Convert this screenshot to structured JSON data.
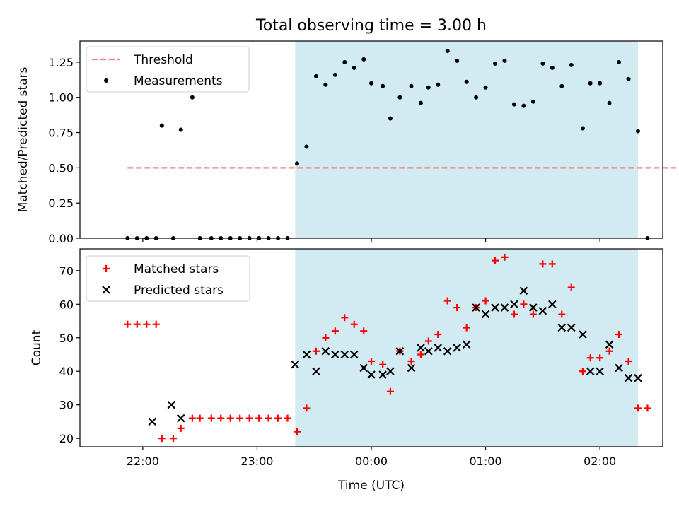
{
  "figure": {
    "title": "Total observing time = 3.00 h",
    "xlabel": "Time (UTC)",
    "xticks": [
      {
        "t": 0,
        "label": "22:00"
      },
      {
        "t": 60,
        "label": "23:00"
      },
      {
        "t": 120,
        "label": "00:00"
      },
      {
        "t": 180,
        "label": "01:00"
      },
      {
        "t": 240,
        "label": "02:00"
      }
    ],
    "colors": {
      "shade": "#add8e6",
      "threshold": "#f08080",
      "matched": "#ff0000",
      "predicted": "#000000",
      "measurement": "#000000"
    }
  },
  "chart_data": [
    {
      "type": "scatter",
      "ylabel": "Matched/Predicted stars",
      "xlim": [
        "21:27",
        "02:33"
      ],
      "ylim": [
        0,
        1.4
      ],
      "yticks": [
        "0.00",
        "0.25",
        "0.50",
        "0.75",
        "1.00",
        "1.25"
      ],
      "ytick_values": [
        0,
        0.25,
        0.5,
        0.75,
        1.0,
        1.25
      ],
      "shaded_span": [
        "23:20",
        "02:20"
      ],
      "legend": {
        "placement": "upper-left",
        "entries": [
          "Threshold",
          "Measurements"
        ]
      },
      "threshold": {
        "name": "Threshold",
        "y": 0.5,
        "x": [
          "21:52",
          "02:40"
        ]
      },
      "series": [
        {
          "name": "Measurements",
          "x": [
            "21:52",
            "21:57",
            "22:02",
            "22:07",
            "22:10",
            "22:16",
            "22:20",
            "22:26",
            "22:30",
            "22:36",
            "22:41",
            "22:46",
            "22:51",
            "22:56",
            "23:01",
            "23:06",
            "23:11",
            "23:16",
            "23:21",
            "23:26",
            "23:31",
            "23:36",
            "23:41",
            "23:46",
            "23:51",
            "23:56",
            "00:00",
            "00:06",
            "00:10",
            "00:15",
            "00:21",
            "00:26",
            "00:30",
            "00:35",
            "00:40",
            "00:45",
            "00:50",
            "00:55",
            "01:00",
            "01:05",
            "01:10",
            "01:15",
            "01:20",
            "01:25",
            "01:30",
            "01:35",
            "01:40",
            "01:45",
            "01:51",
            "01:55",
            "02:00",
            "02:05",
            "02:10",
            "02:15",
            "02:20",
            "02:25"
          ],
          "y": [
            0,
            0,
            0,
            0,
            0.8,
            0,
            0.77,
            1.0,
            0,
            0,
            0,
            0,
            0,
            0,
            0,
            0,
            0,
            0,
            0.53,
            0.65,
            1.15,
            1.09,
            1.16,
            1.25,
            1.21,
            1.27,
            1.1,
            1.08,
            0.85,
            1.0,
            1.08,
            0.96,
            1.07,
            1.09,
            1.33,
            1.26,
            1.11,
            1.0,
            1.07,
            1.24,
            1.26,
            0.95,
            0.94,
            0.97,
            1.24,
            1.21,
            1.08,
            1.23,
            0.78,
            1.1,
            1.1,
            0.96,
            1.25,
            1.13,
            0.76,
            0
          ]
        }
      ]
    },
    {
      "type": "scatter",
      "ylabel": "Count",
      "xlim": [
        "21:27",
        "02:33"
      ],
      "ylim": [
        17.5,
        76.5
      ],
      "yticks": [
        "20",
        "30",
        "40",
        "50",
        "60",
        "70"
      ],
      "ytick_values": [
        20,
        30,
        40,
        50,
        60,
        70
      ],
      "shaded_span": [
        "23:20",
        "02:20"
      ],
      "legend": {
        "placement": "upper-left",
        "entries": [
          "Matched stars",
          "Predicted stars"
        ]
      },
      "series": [
        {
          "name": "Matched stars",
          "marker": "+",
          "x": [
            "21:52",
            "21:57",
            "22:02",
            "22:07",
            "22:10",
            "22:16",
            "22:20",
            "22:26",
            "22:30",
            "22:36",
            "22:41",
            "22:46",
            "22:51",
            "22:56",
            "23:01",
            "23:06",
            "23:11",
            "23:16",
            "23:21",
            "23:26",
            "23:31",
            "23:36",
            "23:41",
            "23:46",
            "23:51",
            "23:56",
            "00:00",
            "00:06",
            "00:10",
            "00:15",
            "00:21",
            "00:26",
            "00:30",
            "00:35",
            "00:40",
            "00:45",
            "00:50",
            "00:55",
            "01:00",
            "01:05",
            "01:10",
            "01:15",
            "01:20",
            "01:25",
            "01:30",
            "01:35",
            "01:40",
            "01:45",
            "01:51",
            "01:55",
            "02:00",
            "02:05",
            "02:10",
            "02:15",
            "02:20",
            "02:25"
          ],
          "y": [
            54,
            54,
            54,
            54,
            20,
            20,
            23,
            26,
            26,
            26,
            26,
            26,
            26,
            26,
            26,
            26,
            26,
            26,
            22,
            29,
            46,
            50,
            52,
            56,
            54,
            52,
            43,
            42,
            34,
            46,
            43,
            45,
            49,
            51,
            61,
            59,
            53,
            59,
            61,
            73,
            74,
            57,
            60,
            57,
            72,
            72,
            57,
            65,
            40,
            44,
            44,
            46,
            51,
            43,
            29,
            29
          ]
        },
        {
          "name": "Predicted stars",
          "marker": "x",
          "x": [
            "22:05",
            "22:15",
            "22:20",
            "23:20",
            "23:26",
            "23:31",
            "23:36",
            "23:41",
            "23:46",
            "23:51",
            "23:56",
            "00:00",
            "00:06",
            "00:10",
            "00:15",
            "00:21",
            "00:26",
            "00:30",
            "00:35",
            "00:40",
            "00:45",
            "00:50",
            "00:55",
            "01:00",
            "01:05",
            "01:10",
            "01:15",
            "01:20",
            "01:25",
            "01:30",
            "01:35",
            "01:40",
            "01:45",
            "01:51",
            "01:55",
            "02:00",
            "02:05",
            "02:10",
            "02:15",
            "02:20"
          ],
          "y": [
            25,
            30,
            26,
            42,
            45,
            40,
            46,
            45,
            45,
            45,
            41,
            39,
            39,
            40,
            46,
            41,
            47,
            46,
            47,
            46,
            47,
            48,
            59,
            57,
            59,
            59,
            60,
            64,
            59,
            58,
            60,
            53,
            53,
            51,
            40,
            40,
            48,
            41,
            38,
            38
          ]
        }
      ]
    }
  ]
}
